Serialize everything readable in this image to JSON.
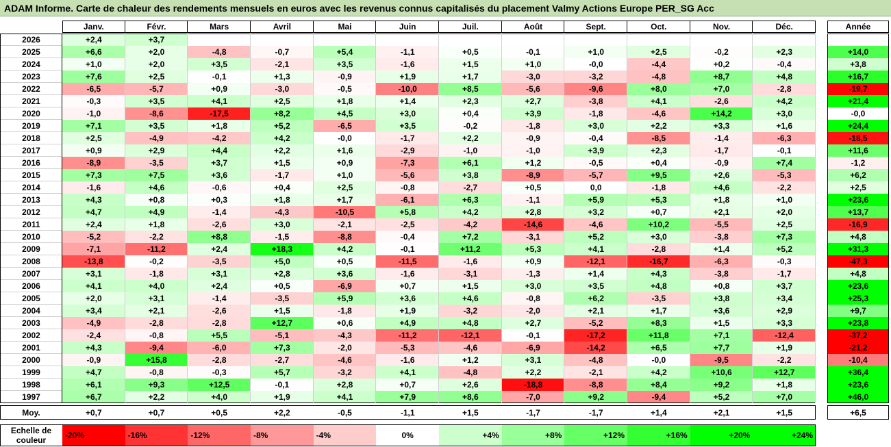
{
  "title": "ADAM Informe. Carte de chaleur des rendements mensuels en euros avec les revenus connus capitalisés du placement Valmy Actions Europe PER_SG Acc",
  "months": [
    "Janv.",
    "Févr.",
    "Mars",
    "Avril",
    "Mai",
    "Juin",
    "Juil.",
    "Août",
    "Sept.",
    "Oct.",
    "Nov.",
    "Déc."
  ],
  "annual_label": "Année",
  "avg_label": "Moy.",
  "scale_label": "Echelle de couleur",
  "scale": [
    {
      "label": "-20%",
      "value": -20,
      "color": "#ff0000"
    },
    {
      "label": "-16%",
      "value": -16,
      "color": "#ff3333"
    },
    {
      "label": "-12%",
      "value": -12,
      "color": "#ff6666"
    },
    {
      "label": "-8%",
      "value": -8,
      "color": "#ff9999"
    },
    {
      "label": "-4%",
      "value": -4,
      "color": "#ffcccc"
    },
    {
      "label": "0%",
      "value": 0,
      "color": "#ffffff"
    },
    {
      "label": "+4%",
      "value": 4,
      "color": "#ccffcc"
    },
    {
      "label": "+8%",
      "value": 8,
      "color": "#99ff99"
    },
    {
      "label": "+12%",
      "value": 12,
      "color": "#66ff66"
    },
    {
      "label": "+16%",
      "value": 16,
      "color": "#33ff33"
    },
    {
      "label": "+20%",
      "value": 20,
      "color": "#00ff00"
    },
    {
      "label": "+24%",
      "value": 24,
      "color": "#00ff00"
    }
  ],
  "chart_data": {
    "type": "heatmap",
    "rows": [
      {
        "year": "2026",
        "values": [
          "+2,4",
          "+3,7",
          "",
          "",
          "",
          "",
          "",
          "",
          "",
          "",
          "",
          ""
        ],
        "annual": ""
      },
      {
        "year": "2025",
        "values": [
          "+6,6",
          "+2,0",
          "-4,8",
          "-0,7",
          "+5,4",
          "-1,1",
          "+0,5",
          "-0,1",
          "+1,0",
          "+2,5",
          "-0,2",
          "+2,3"
        ],
        "annual": "+14,0"
      },
      {
        "year": "2024",
        "values": [
          "+1,0",
          "+2,0",
          "+3,5",
          "-2,1",
          "+3,5",
          "-1,6",
          "+1,5",
          "+1,0",
          "-0,0",
          "-4,4",
          "+0,2",
          "-0,4"
        ],
        "annual": "+3,8"
      },
      {
        "year": "2023",
        "values": [
          "+7,6",
          "+2,5",
          "-0,1",
          "+1,3",
          "-0,9",
          "+1,9",
          "+1,7",
          "-3,0",
          "-3,2",
          "-4,8",
          "+8,7",
          "+4,8"
        ],
        "annual": "+16,7"
      },
      {
        "year": "2022",
        "values": [
          "-6,5",
          "-5,7",
          "+0,9",
          "-3,0",
          "-0,5",
          "-10,0",
          "+8,5",
          "-5,6",
          "-9,6",
          "+8,0",
          "+7,0",
          "-2,8"
        ],
        "annual": "-19,7"
      },
      {
        "year": "2021",
        "values": [
          "-0,3",
          "+3,5",
          "+4,1",
          "+2,5",
          "+1,8",
          "+1,4",
          "+2,3",
          "+2,7",
          "-3,8",
          "+4,1",
          "-2,6",
          "+4,2"
        ],
        "annual": "+21,4"
      },
      {
        "year": "2020",
        "values": [
          "-1,0",
          "-8,6",
          "-17,5",
          "+8,2",
          "+4,5",
          "+3,0",
          "+0,4",
          "+3,9",
          "-1,8",
          "-4,6",
          "+14,2",
          "+3,0"
        ],
        "annual": "-0,0"
      },
      {
        "year": "2019",
        "values": [
          "+7,1",
          "+3,5",
          "+1,8",
          "+5,2",
          "-6,5",
          "+3,5",
          "-0,2",
          "-1,8",
          "+3,0",
          "+2,2",
          "+3,3",
          "+1,6"
        ],
        "annual": "+24,4"
      },
      {
        "year": "2018",
        "values": [
          "+2,5",
          "-4,9",
          "-4,2",
          "+4,2",
          "-0,0",
          "-1,7",
          "+2,2",
          "-0,9",
          "-0,4",
          "-8,5",
          "-1,4",
          "-6,3"
        ],
        "annual": "-18,5"
      },
      {
        "year": "2017",
        "values": [
          "+0,9",
          "+2,9",
          "+4,4",
          "+2,2",
          "+1,6",
          "-2,9",
          "-1,0",
          "-1,0",
          "+3,9",
          "+2,3",
          "-1,7",
          "-0,1"
        ],
        "annual": "+11,6"
      },
      {
        "year": "2016",
        "values": [
          "-8,9",
          "-3,5",
          "+3,7",
          "+1,5",
          "+0,9",
          "-7,3",
          "+6,1",
          "+1,2",
          "-0,5",
          "+0,4",
          "-0,9",
          "+7,4"
        ],
        "annual": "-1,2"
      },
      {
        "year": "2015",
        "values": [
          "+7,3",
          "+7,5",
          "+3,6",
          "-1,7",
          "+1,0",
          "-5,6",
          "+3,8",
          "-8,9",
          "-5,7",
          "+9,5",
          "+2,6",
          "-5,3"
        ],
        "annual": "+6,2"
      },
      {
        "year": "2014",
        "values": [
          "-1,6",
          "+4,6",
          "-0,6",
          "+0,4",
          "+2,5",
          "-0,8",
          "-2,7",
          "+0,5",
          "0,0",
          "-1,8",
          "+4,6",
          "-2,2"
        ],
        "annual": "+2,5"
      },
      {
        "year": "2013",
        "values": [
          "+4,3",
          "+0,8",
          "+0,3",
          "+1,8",
          "+1,7",
          "-6,1",
          "+6,3",
          "-1,1",
          "+5,9",
          "+5,3",
          "+1,8",
          "+1,0"
        ],
        "annual": "+23,6"
      },
      {
        "year": "2012",
        "values": [
          "+4,7",
          "+4,9",
          "-1,4",
          "-4,3",
          "-10,5",
          "+5,8",
          "+4,2",
          "+2,8",
          "+3,2",
          "+0,7",
          "+2,1",
          "+2,0"
        ],
        "annual": "+13,7"
      },
      {
        "year": "2011",
        "values": [
          "+2,4",
          "+1,8",
          "-2,6",
          "+3,0",
          "-2,1",
          "-2,5",
          "-4,2",
          "-14,6",
          "-4,6",
          "+10,2",
          "-5,5",
          "+2,5"
        ],
        "annual": "-16,9"
      },
      {
        "year": "2010",
        "values": [
          "-5,2",
          "-2,2",
          "+8,8",
          "-1,5",
          "-8,8",
          "-0,4",
          "+7,2",
          "-3,1",
          "+5,2",
          "+3,0",
          "-3,8",
          "+7,3"
        ],
        "annual": "+4,8"
      },
      {
        "year": "2009",
        "values": [
          "-7,1",
          "-11,2",
          "+2,4",
          "+18,3",
          "+4,2",
          "-0,1",
          "+11,2",
          "+5,3",
          "+4,1",
          "-2,8",
          "+1,4",
          "+5,2"
        ],
        "annual": "+31,3"
      },
      {
        "year": "2008",
        "values": [
          "-13,8",
          "-0,2",
          "-3,5",
          "+5,0",
          "+0,5",
          "-11,5",
          "-1,6",
          "+0,9",
          "-12,1",
          "-16,7",
          "-6,3",
          "-0,3"
        ],
        "annual": "-47,3"
      },
      {
        "year": "2007",
        "values": [
          "+3,1",
          "-1,8",
          "+3,1",
          "+2,8",
          "+3,6",
          "-1,6",
          "-3,1",
          "-1,3",
          "+1,4",
          "+4,3",
          "-3,8",
          "-1,7"
        ],
        "annual": "+4,8"
      },
      {
        "year": "2006",
        "values": [
          "+4,1",
          "+4,0",
          "+2,4",
          "+0,5",
          "-6,9",
          "+0,7",
          "+1,5",
          "+3,0",
          "+3,5",
          "+4,8",
          "+0,8",
          "+3,7"
        ],
        "annual": "+23,6"
      },
      {
        "year": "2005",
        "values": [
          "+2,0",
          "+3,1",
          "-1,4",
          "-3,5",
          "+5,9",
          "+3,6",
          "+4,6",
          "-0,8",
          "+6,2",
          "-3,5",
          "+3,8",
          "+3,4"
        ],
        "annual": "+25,3"
      },
      {
        "year": "2004",
        "values": [
          "+3,4",
          "+2,1",
          "-2,6",
          "+1,5",
          "-1,8",
          "+1,9",
          "-3,2",
          "-2,0",
          "+2,1",
          "+1,7",
          "+3,6",
          "+2,9"
        ],
        "annual": "+9,7"
      },
      {
        "year": "2003",
        "values": [
          "-4,9",
          "-2,8",
          "-2,8",
          "+12,7",
          "+0,6",
          "+4,9",
          "+4,8",
          "+2,7",
          "-5,2",
          "+8,3",
          "+1,5",
          "+3,3"
        ],
        "annual": "+23,8"
      },
      {
        "year": "2002",
        "values": [
          "-2,4",
          "-0,8",
          "+5,5",
          "-5,1",
          "-4,3",
          "-11,2",
          "-12,1",
          "-0,1",
          "-17,2",
          "+11,8",
          "+7,1",
          "-12,4"
        ],
        "annual": "-37,2"
      },
      {
        "year": "2001",
        "values": [
          "+4,3",
          "-9,4",
          "-6,0",
          "+7,3",
          "-2,0",
          "-5,3",
          "-4,6",
          "-6,9",
          "-14,2",
          "+6,5",
          "+7,7",
          "+1,9"
        ],
        "annual": "-21,2"
      },
      {
        "year": "2000",
        "values": [
          "-0,9",
          "+15,8",
          "-2,8",
          "-2,7",
          "-4,6",
          "-1,6",
          "+1,2",
          "+3,1",
          "-4,8",
          "-0,0",
          "-9,5",
          "-2,2"
        ],
        "annual": "-10,4"
      },
      {
        "year": "1999",
        "values": [
          "+4,7",
          "-0,8",
          "-0,3",
          "+5,7",
          "-3,2",
          "+4,1",
          "-4,8",
          "+2,2",
          "-2,1",
          "+4,2",
          "+10,6",
          "+12,7"
        ],
        "annual": "+36,4"
      },
      {
        "year": "1998",
        "values": [
          "+6,1",
          "+9,3",
          "+12,5",
          "-0,1",
          "+2,8",
          "+0,7",
          "+2,6",
          "-18,8",
          "-8,8",
          "+8,4",
          "+9,2",
          "+1,8"
        ],
        "annual": "+23,6"
      },
      {
        "year": "1997",
        "values": [
          "+6,7",
          "+2,2",
          "+4,0",
          "+1,9",
          "+4,1",
          "+7,9",
          "+8,6",
          "-7,0",
          "+9,2",
          "-9,4",
          "+5,2",
          "+7,0"
        ],
        "annual": "+46,0"
      }
    ],
    "average": {
      "values": [
        "+0,7",
        "+0,7",
        "+0,5",
        "+2,2",
        "-0,5",
        "-1,1",
        "+1,5",
        "-1,7",
        "-1,7",
        "+1,4",
        "+2,1",
        "+1,5"
      ],
      "annual": "+6,5"
    }
  }
}
